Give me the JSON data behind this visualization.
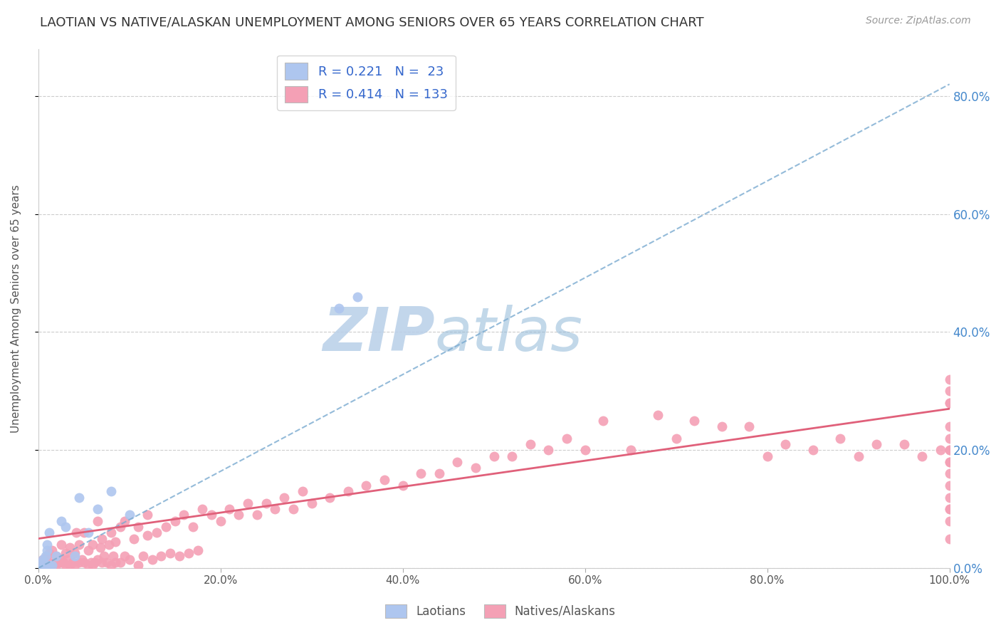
{
  "title": "LAOTIAN VS NATIVE/ALASKAN UNEMPLOYMENT AMONG SENIORS OVER 65 YEARS CORRELATION CHART",
  "source": "Source: ZipAtlas.com",
  "ylabel": "Unemployment Among Seniors over 65 years",
  "xlim": [
    0.0,
    1.0
  ],
  "ylim": [
    0.0,
    0.88
  ],
  "R_laotian": 0.221,
  "N_laotian": 23,
  "R_native": 0.414,
  "N_native": 133,
  "laotian_color": "#aec6ef",
  "native_color": "#f4a0b5",
  "laotian_line_color": "#7aaad0",
  "native_line_color": "#e0607a",
  "background_color": "#ffffff",
  "laotian_points_x": [
    0.005,
    0.005,
    0.005,
    0.005,
    0.005,
    0.008,
    0.008,
    0.01,
    0.01,
    0.012,
    0.012,
    0.015,
    0.02,
    0.025,
    0.03,
    0.04,
    0.045,
    0.055,
    0.065,
    0.08,
    0.1,
    0.33,
    0.35
  ],
  "laotian_points_y": [
    0.0,
    0.0,
    0.005,
    0.01,
    0.015,
    0.005,
    0.02,
    0.03,
    0.04,
    0.005,
    0.06,
    0.005,
    0.02,
    0.08,
    0.07,
    0.02,
    0.12,
    0.06,
    0.1,
    0.13,
    0.09,
    0.44,
    0.46
  ],
  "native_points_x": [
    0.005,
    0.005,
    0.005,
    0.008,
    0.01,
    0.01,
    0.012,
    0.012,
    0.015,
    0.015,
    0.018,
    0.02,
    0.02,
    0.022,
    0.025,
    0.025,
    0.028,
    0.03,
    0.03,
    0.032,
    0.035,
    0.035,
    0.038,
    0.04,
    0.04,
    0.042,
    0.045,
    0.045,
    0.048,
    0.05,
    0.05,
    0.055,
    0.055,
    0.058,
    0.06,
    0.06,
    0.062,
    0.065,
    0.065,
    0.068,
    0.07,
    0.07,
    0.072,
    0.075,
    0.078,
    0.08,
    0.08,
    0.082,
    0.085,
    0.085,
    0.09,
    0.09,
    0.095,
    0.095,
    0.1,
    0.105,
    0.11,
    0.11,
    0.115,
    0.12,
    0.12,
    0.125,
    0.13,
    0.135,
    0.14,
    0.145,
    0.15,
    0.155,
    0.16,
    0.165,
    0.17,
    0.175,
    0.18,
    0.19,
    0.2,
    0.21,
    0.22,
    0.23,
    0.24,
    0.25,
    0.26,
    0.27,
    0.28,
    0.29,
    0.3,
    0.32,
    0.34,
    0.36,
    0.38,
    0.4,
    0.42,
    0.44,
    0.46,
    0.48,
    0.5,
    0.52,
    0.54,
    0.56,
    0.58,
    0.6,
    0.62,
    0.65,
    0.68,
    0.7,
    0.72,
    0.75,
    0.78,
    0.8,
    0.82,
    0.85,
    0.88,
    0.9,
    0.92,
    0.95,
    0.97,
    0.99,
    1.0,
    1.0,
    1.0,
    1.0,
    1.0,
    1.0,
    1.0,
    1.0,
    1.0,
    1.0,
    1.0,
    1.0,
    1.0,
    1.0,
    1.0,
    1.0,
    1.0
  ],
  "native_points_y": [
    0.005,
    0.01,
    0.015,
    0.005,
    0.005,
    0.02,
    0.01,
    0.025,
    0.005,
    0.03,
    0.01,
    0.005,
    0.02,
    0.01,
    0.015,
    0.04,
    0.01,
    0.005,
    0.025,
    0.015,
    0.005,
    0.035,
    0.01,
    0.005,
    0.025,
    0.06,
    0.01,
    0.04,
    0.015,
    0.01,
    0.06,
    0.005,
    0.03,
    0.01,
    0.005,
    0.04,
    0.01,
    0.08,
    0.015,
    0.035,
    0.01,
    0.05,
    0.02,
    0.01,
    0.04,
    0.005,
    0.06,
    0.02,
    0.01,
    0.045,
    0.01,
    0.07,
    0.02,
    0.08,
    0.015,
    0.05,
    0.005,
    0.07,
    0.02,
    0.055,
    0.09,
    0.015,
    0.06,
    0.02,
    0.07,
    0.025,
    0.08,
    0.02,
    0.09,
    0.025,
    0.07,
    0.03,
    0.1,
    0.09,
    0.08,
    0.1,
    0.09,
    0.11,
    0.09,
    0.11,
    0.1,
    0.12,
    0.1,
    0.13,
    0.11,
    0.12,
    0.13,
    0.14,
    0.15,
    0.14,
    0.16,
    0.16,
    0.18,
    0.17,
    0.19,
    0.19,
    0.21,
    0.2,
    0.22,
    0.2,
    0.25,
    0.2,
    0.26,
    0.22,
    0.25,
    0.24,
    0.24,
    0.19,
    0.21,
    0.2,
    0.22,
    0.19,
    0.21,
    0.21,
    0.19,
    0.2,
    0.05,
    0.08,
    0.1,
    0.12,
    0.14,
    0.18,
    0.1,
    0.16,
    0.18,
    0.22,
    0.24,
    0.2,
    0.28,
    0.3,
    0.32,
    0.2,
    0.28
  ]
}
